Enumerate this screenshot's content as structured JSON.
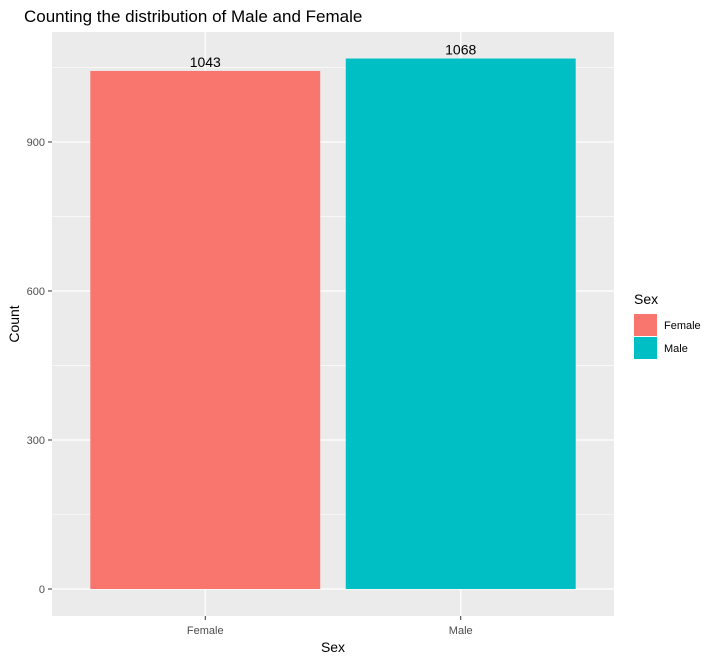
{
  "chart_data": {
    "type": "bar",
    "title": "Counting the distribution of Male and Female",
    "xlabel": "Sex",
    "ylabel": "Count",
    "categories": [
      "Female",
      "Male"
    ],
    "values": [
      1043,
      1068
    ],
    "data_labels": [
      "1043",
      "1068"
    ],
    "ylim": [
      0,
      1120
    ],
    "yticks": [
      0,
      300,
      600,
      900
    ],
    "ytick_labels": [
      "0",
      "300",
      "600",
      "900"
    ],
    "grid": true,
    "legend": {
      "title": "Sex",
      "position": "right",
      "entries": [
        "Female",
        "Male"
      ]
    },
    "colors": [
      "#F8766D",
      "#00BFC4"
    ],
    "panel_background": "#EBEBEB",
    "gridline_color": "#FFFFFF"
  }
}
